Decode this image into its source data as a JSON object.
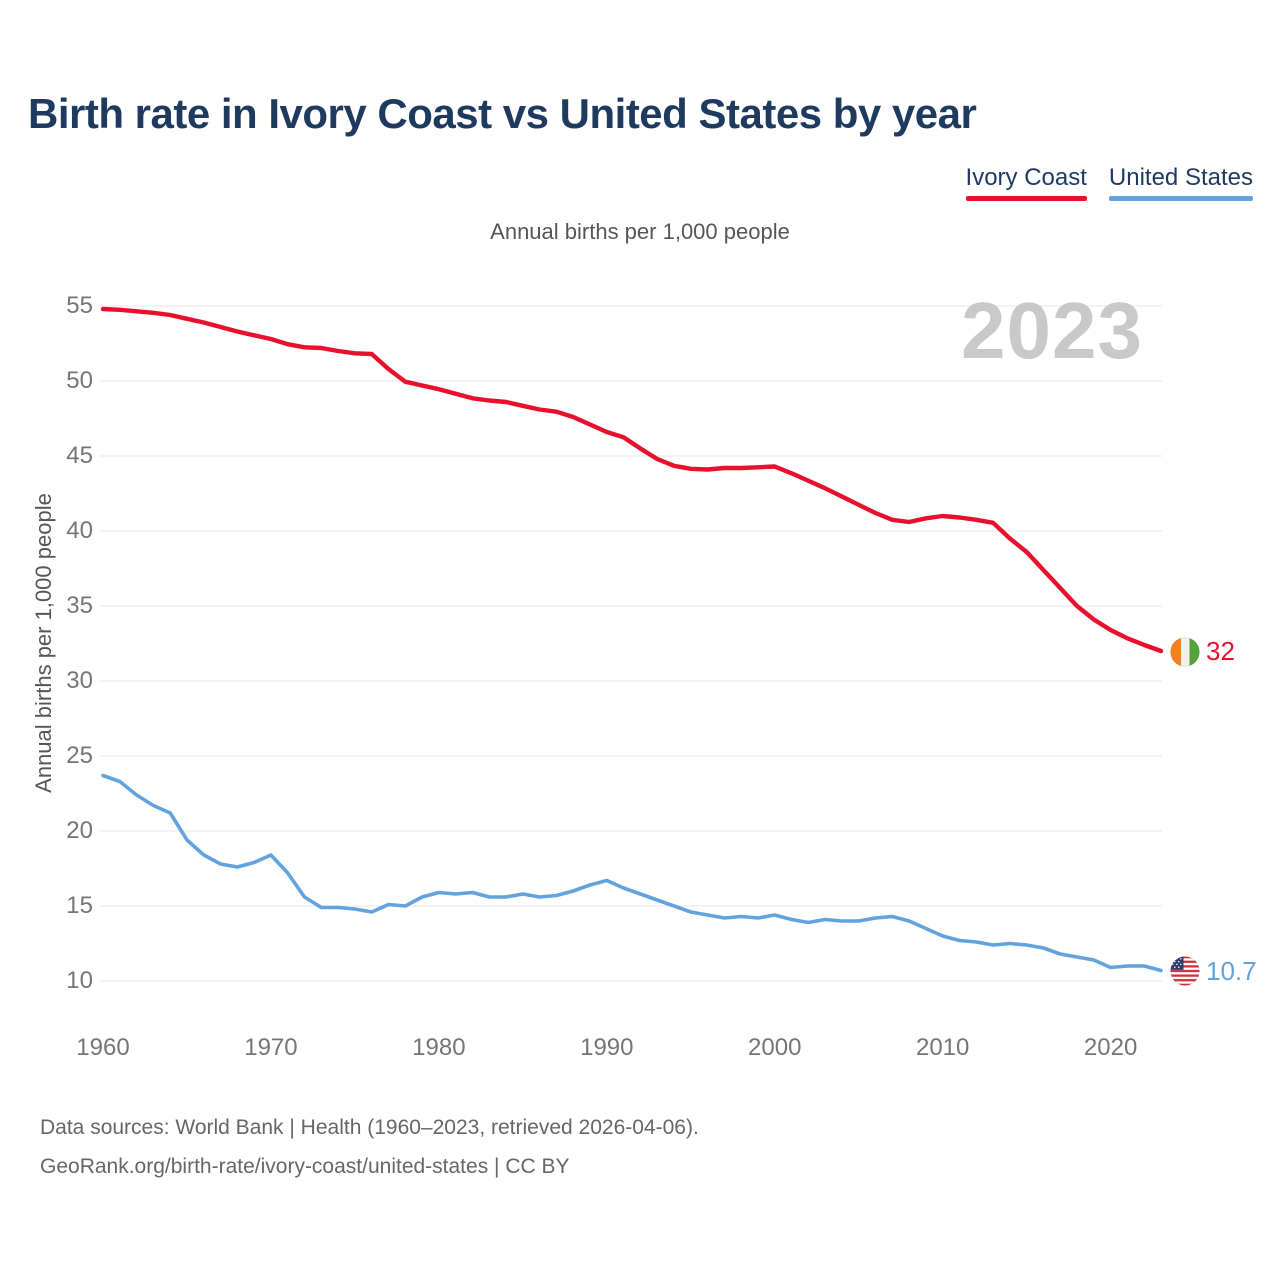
{
  "header": {
    "title": "Birth rate in Ivory Coast vs United States by year"
  },
  "chart_data": {
    "type": "line",
    "title": "Annual births per 1,000 people",
    "ylabel": "Annual births per 1,000 people",
    "watermark": "2023",
    "grid": true,
    "legend_position": "top-right",
    "x_range": [
      1960,
      2023
    ],
    "ylim": [
      10,
      55
    ],
    "x_ticks": [
      1960,
      1970,
      1980,
      1990,
      2000,
      2010,
      2020
    ],
    "y_ticks": [
      55,
      50,
      45,
      40,
      35,
      30,
      25,
      20,
      15,
      10
    ],
    "series": [
      {
        "name": "Ivory Coast",
        "color": "#e8112d",
        "end_label": "32",
        "flag": "ivory-coast",
        "x_start": 1960,
        "values": [
          54.8,
          54.75,
          54.65,
          54.55,
          54.4,
          54.15,
          53.9,
          53.6,
          53.3,
          53.05,
          52.8,
          52.45,
          52.25,
          52.2,
          52.0,
          51.85,
          51.8,
          50.8,
          49.95,
          49.7,
          49.45,
          49.15,
          48.85,
          48.7,
          48.6,
          48.35,
          48.1,
          47.95,
          47.6,
          47.1,
          46.6,
          46.25,
          45.5,
          44.8,
          44.35,
          44.15,
          44.1,
          44.2,
          44.2,
          44.25,
          44.3,
          43.85,
          43.35,
          42.85,
          42.3,
          41.75,
          41.2,
          40.75,
          40.6,
          40.85,
          41.0,
          40.9,
          40.75,
          40.55,
          39.5,
          38.6,
          37.4,
          36.2,
          35.0,
          34.1,
          33.4,
          32.85,
          32.4,
          32.0
        ]
      },
      {
        "name": "United States",
        "color": "#63a3dd",
        "end_label": "10.7",
        "flag": "united-states",
        "x_start": 1960,
        "values": [
          23.7,
          23.3,
          22.4,
          21.7,
          21.2,
          19.4,
          18.4,
          17.8,
          17.6,
          17.9,
          18.4,
          17.2,
          15.6,
          14.9,
          14.9,
          14.8,
          14.6,
          15.1,
          15.0,
          15.6,
          15.9,
          15.8,
          15.9,
          15.6,
          15.6,
          15.8,
          15.6,
          15.7,
          16.0,
          16.4,
          16.7,
          16.2,
          15.8,
          15.4,
          15.0,
          14.6,
          14.4,
          14.2,
          14.3,
          14.2,
          14.4,
          14.1,
          13.9,
          14.1,
          14.0,
          14.0,
          14.2,
          14.3,
          14.0,
          13.5,
          13.0,
          12.7,
          12.6,
          12.4,
          12.5,
          12.4,
          12.2,
          11.8,
          11.6,
          11.4,
          10.9,
          11.0,
          11.0,
          10.7
        ]
      }
    ]
  },
  "footer": {
    "line1": "Data sources: World Bank | Health (1960–2023, retrieved 2026-04-06).",
    "line2": "GeoRank.org/birth-rate/ivory-coast/united-states | CC BY"
  },
  "style": {
    "grid_color": "#ececec",
    "tick_color": "#757575",
    "title_color": "#1e3a5f"
  }
}
